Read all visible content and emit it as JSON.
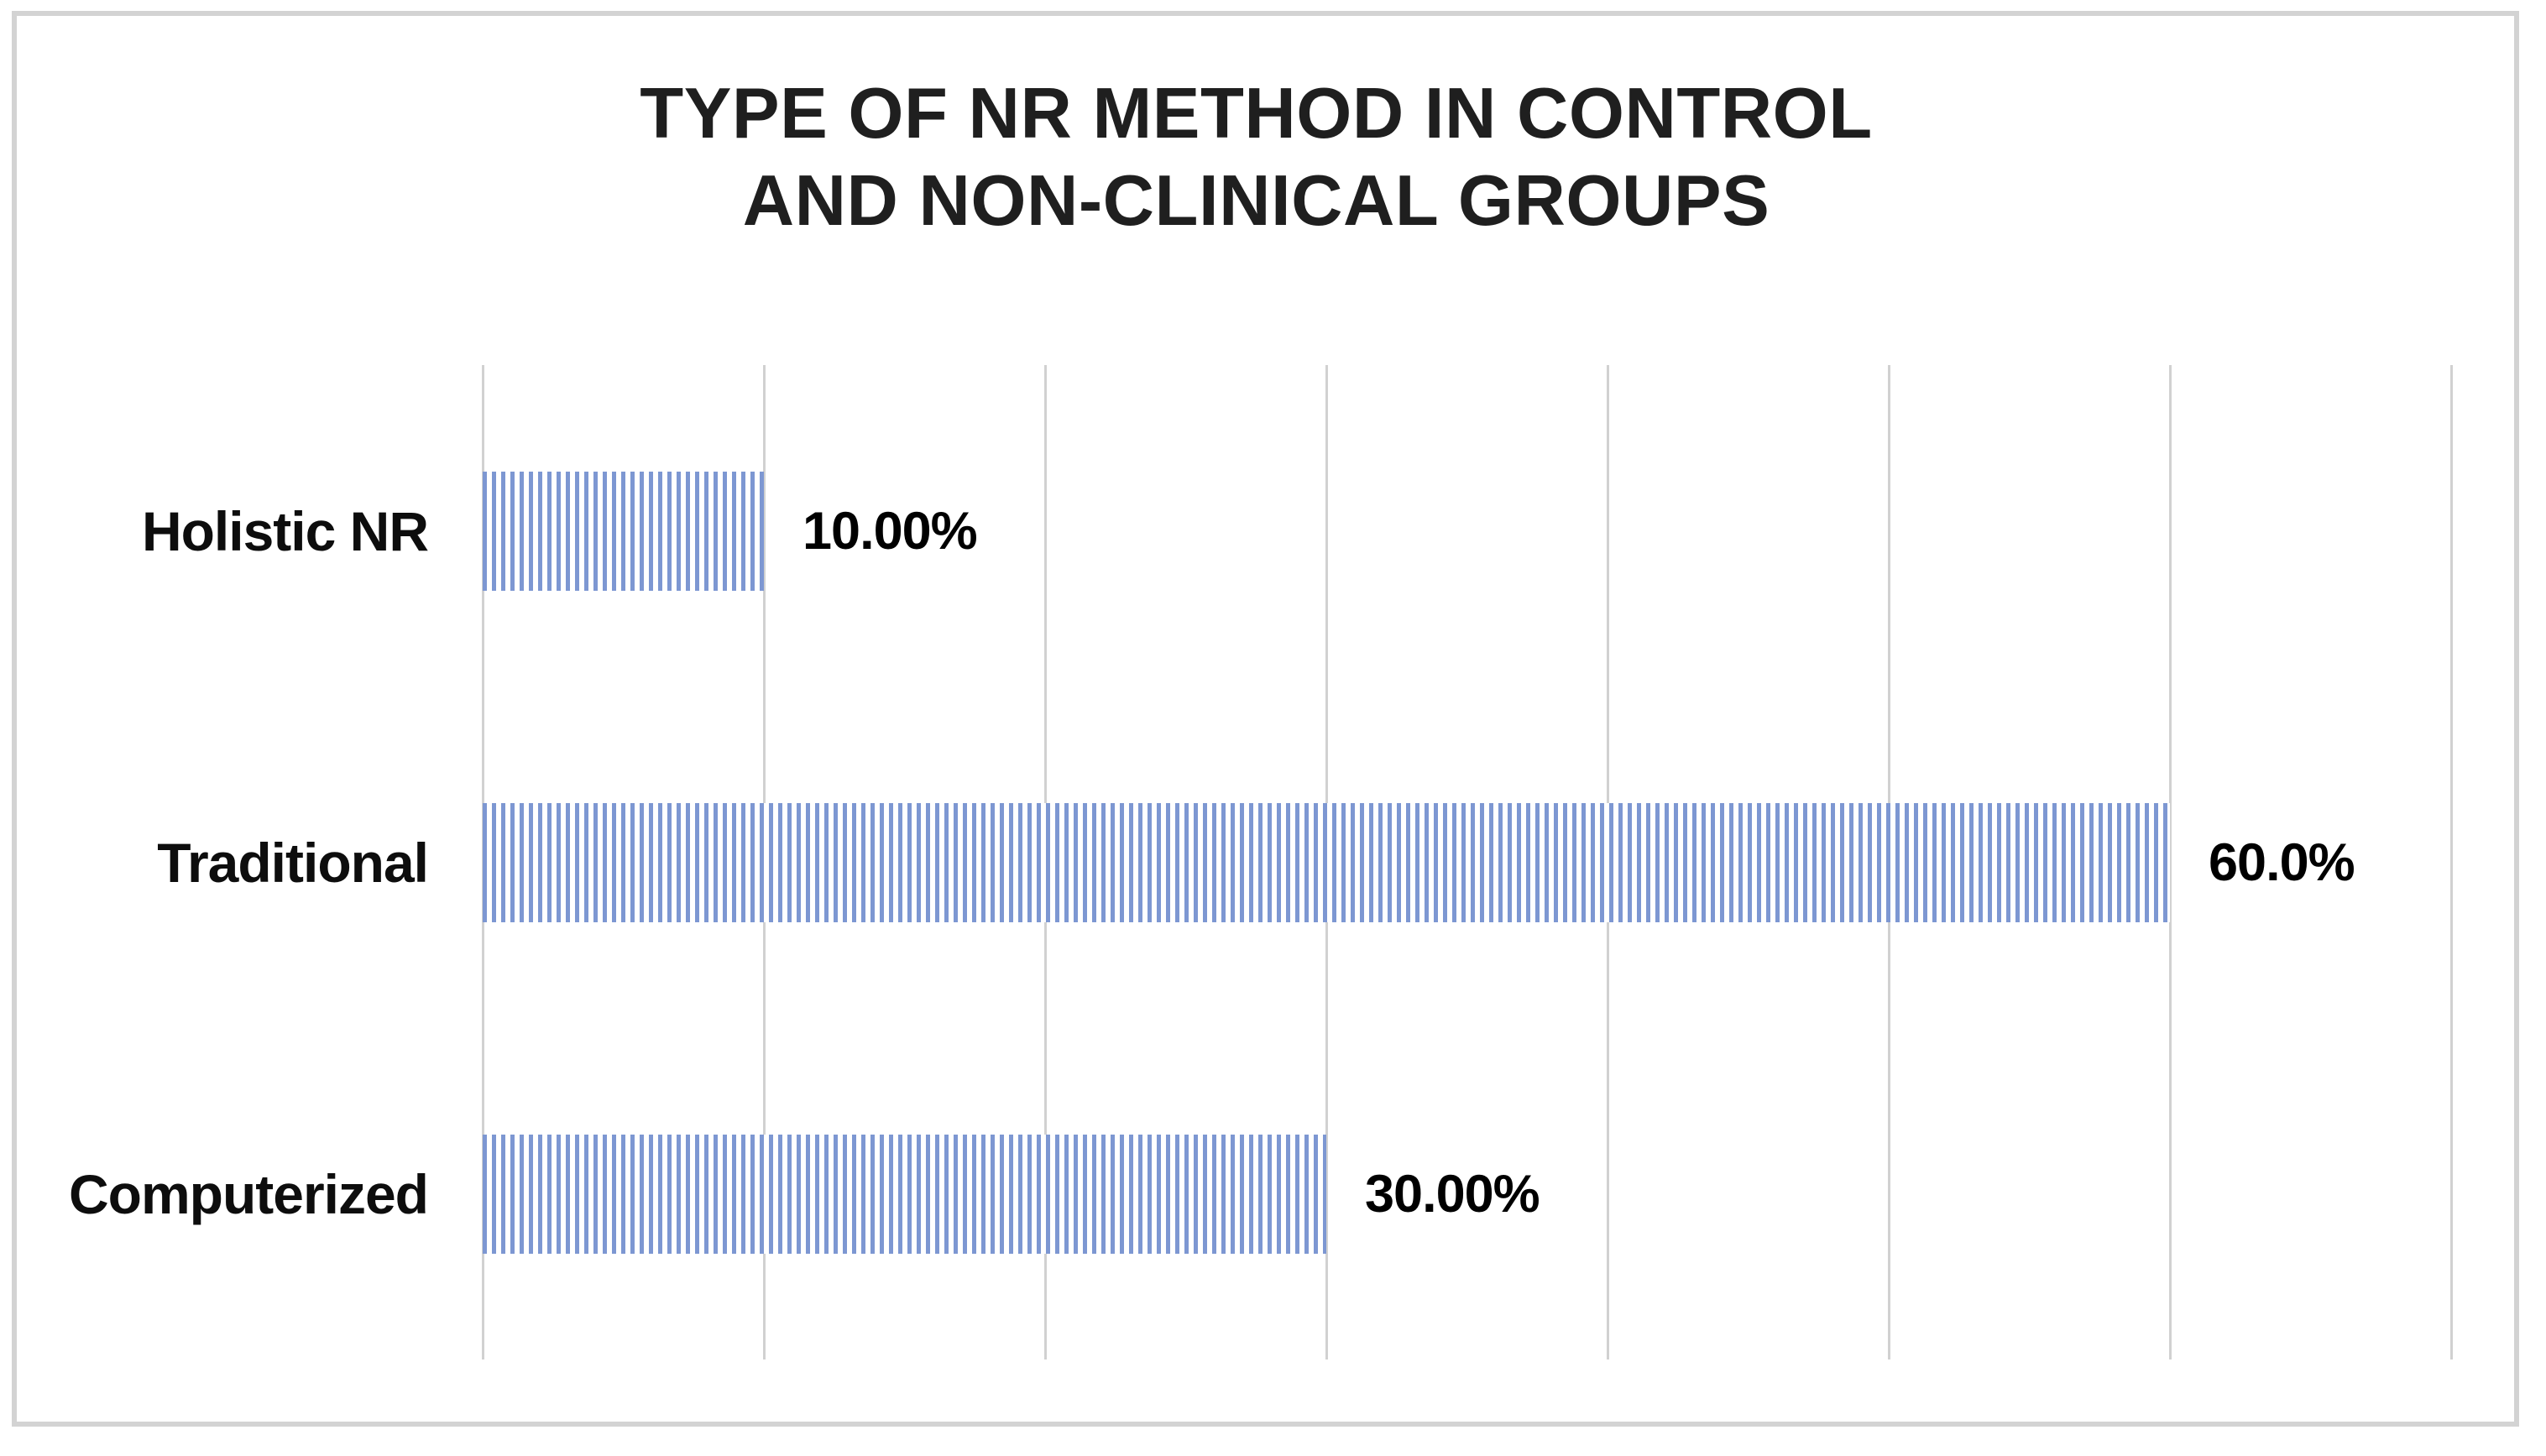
{
  "title": {
    "line1": "TYPE OF NR METHOD IN CONTROL",
    "line2": "AND NON-CLINICAL GROUPS"
  },
  "chart_data": {
    "type": "bar",
    "orientation": "horizontal",
    "title": "TYPE OF NR METHOD IN CONTROL AND NON-CLINICAL GROUPS",
    "categories": [
      "Holistic NR",
      "Traditional",
      "Computerized"
    ],
    "values": [
      10.0,
      60.0,
      30.0
    ],
    "value_labels": [
      "10.00%",
      "60.0%",
      "30.00%"
    ],
    "xlabel": "",
    "ylabel": "",
    "xlim": [
      0,
      70
    ],
    "gridline_step": 10,
    "grid": "vertical-gridlines-only",
    "legend": "none",
    "bar_fill_pattern": "thin-vertical-stripes",
    "colors": {
      "bar_stripe": "#7d97d2",
      "bar_background": "#ffffff",
      "gridline": "#d1d1d1",
      "frame_border": "#d3d3d3",
      "title_text": "#1f1f1f",
      "label_text": "#0d0d0d"
    }
  }
}
